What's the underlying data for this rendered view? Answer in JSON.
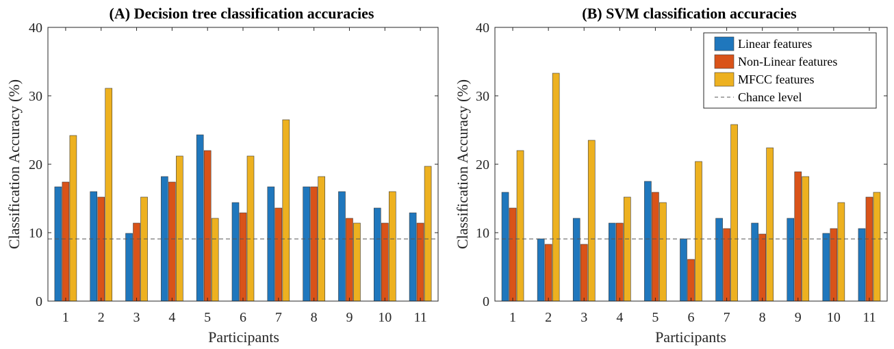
{
  "colors": {
    "linear": "#1f77bd",
    "nonlinear": "#d95319",
    "mfcc": "#edb120",
    "chance": "#555555",
    "axis": "#262626",
    "bar_edge": "#3a3a3a"
  },
  "chart_data": [
    {
      "type": "bar",
      "title": "(A) Decision tree classification accuracies",
      "xlabel": "Participants",
      "ylabel": "Classification Accuracy (%)",
      "ylim": [
        0,
        40
      ],
      "yticks": [
        0,
        10,
        20,
        30,
        40
      ],
      "categories": [
        "1",
        "2",
        "3",
        "4",
        "5",
        "6",
        "7",
        "8",
        "9",
        "10",
        "11"
      ],
      "series": [
        {
          "name": "Linear features",
          "color_key": "linear",
          "values": [
            16.7,
            16.0,
            9.9,
            18.2,
            24.3,
            14.4,
            16.7,
            16.7,
            16.0,
            13.6,
            12.9
          ]
        },
        {
          "name": "Non-Linear features",
          "color_key": "nonlinear",
          "values": [
            17.4,
            15.2,
            11.4,
            17.4,
            22.0,
            12.9,
            13.6,
            16.7,
            12.1,
            11.4,
            11.4
          ]
        },
        {
          "name": "MFCC features",
          "color_key": "mfcc",
          "values": [
            24.2,
            31.1,
            15.2,
            21.2,
            12.1,
            21.2,
            26.5,
            18.2,
            11.4,
            16.0,
            19.7
          ]
        }
      ],
      "chance_level": 9.09,
      "legend": false,
      "grid": false
    },
    {
      "type": "bar",
      "title": "(B) SVM classification accuracies",
      "xlabel": "Participants",
      "ylabel": "Classification Accuracy (%)",
      "ylim": [
        0,
        40
      ],
      "yticks": [
        0,
        10,
        20,
        30,
        40
      ],
      "categories": [
        "1",
        "2",
        "3",
        "4",
        "5",
        "6",
        "7",
        "8",
        "9",
        "10",
        "11"
      ],
      "series": [
        {
          "name": "Linear features",
          "color_key": "linear",
          "values": [
            15.9,
            9.1,
            12.1,
            11.4,
            17.5,
            9.1,
            12.1,
            11.4,
            12.1,
            9.9,
            10.6
          ]
        },
        {
          "name": "Non-Linear features",
          "color_key": "nonlinear",
          "values": [
            13.6,
            8.3,
            8.3,
            11.4,
            15.9,
            6.1,
            10.6,
            9.8,
            18.9,
            10.6,
            15.2
          ]
        },
        {
          "name": "MFCC features",
          "color_key": "mfcc",
          "values": [
            22.0,
            33.3,
            23.5,
            15.2,
            14.4,
            20.4,
            25.8,
            22.4,
            18.2,
            14.4,
            15.9
          ]
        }
      ],
      "chance_level": 9.09,
      "legend": true,
      "legend_position": "top-right",
      "legend_entries": [
        "Linear features",
        "Non-Linear features",
        "MFCC features",
        "Chance level"
      ],
      "grid": false
    }
  ]
}
